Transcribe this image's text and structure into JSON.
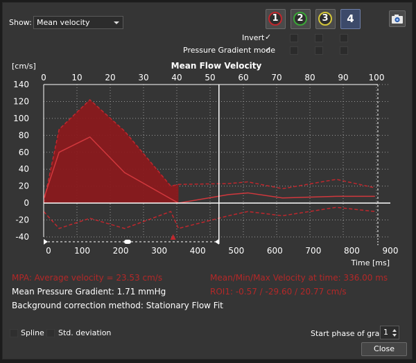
{
  "show": {
    "label": "Show:",
    "selected": "Mean velocity"
  },
  "roi_buttons": [
    {
      "label": "1",
      "color": "#c0272d"
    },
    {
      "label": "2",
      "color": "#3aa637"
    },
    {
      "label": "3",
      "color": "#d6c83a"
    },
    {
      "label": "4",
      "color": "#ffffff"
    }
  ],
  "camera_icon": "camera-icon",
  "options": {
    "invert": {
      "label": "Invert",
      "checked": true
    },
    "pressure_gradient": {
      "label": "Pressure Gradient mode",
      "checked": true
    }
  },
  "chart_data": {
    "type": "area",
    "title": "Mean Flow Velocity",
    "ylabel": "[cm/s]",
    "xlabel": "Time [ms]",
    "x_ticks": [
      0,
      100,
      200,
      300,
      400,
      500,
      600,
      700,
      800,
      900
    ],
    "top_axis_ticks": [
      0,
      10,
      20,
      30,
      40,
      50,
      60,
      70,
      80,
      90,
      100
    ],
    "y_ticks": [
      140,
      120,
      100,
      80,
      60,
      40,
      20,
      0,
      -20,
      -40
    ],
    "ylim": [
      -40,
      140
    ],
    "xlim": [
      0,
      900
    ],
    "grid": true,
    "current_time_ms": 455,
    "marker_time_ms": 336,
    "series": [
      {
        "values_x": [
          0,
          40,
          120,
          210,
          330,
          350,
          480,
          530,
          620,
          760,
          860
        ],
        "max": [
          0,
          87,
          122,
          85,
          20,
          22,
          23,
          25,
          17,
          28,
          18
        ],
        "mean": [
          5,
          60,
          78,
          36,
          5,
          0,
          10,
          12,
          6,
          8,
          8
        ],
        "min": [
          -10,
          -30,
          -18,
          -30,
          -10,
          -30,
          -15,
          -10,
          -15,
          -5,
          -10
        ]
      }
    ]
  },
  "results": {
    "mpa": "MPA: Average velocity = 23.53 cm/s",
    "mean_pressure_gradient": "Mean Pressure Gradient: 1.71 mmHg",
    "background_correction": "Background correction method: Stationary Flow Fit",
    "mmm_velocity": "Mean/Min/Max Velocity at time: 336.00 ms",
    "roi1": "ROI1: -0.57 / -29.60 / 20.77 cm/s"
  },
  "bottom": {
    "spline": "Spline",
    "std_dev": "Std. deviation",
    "start_phase_label": "Start phase of graph",
    "start_phase_value": "1",
    "close": "Close"
  }
}
